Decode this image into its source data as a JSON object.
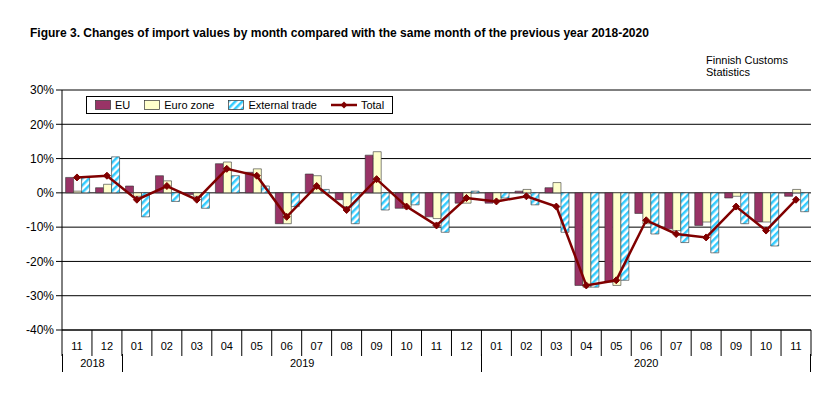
{
  "chart_data": {
    "type": "bar",
    "title": "Figure 3. Changes of import values by month compared with the same month of the previous year 2018-2020",
    "source": "Finnish Customs Statistics",
    "categories": [
      "11",
      "12",
      "01",
      "02",
      "03",
      "04",
      "05",
      "06",
      "07",
      "08",
      "09",
      "10",
      "11",
      "12",
      "01",
      "02",
      "03",
      "04",
      "05",
      "06",
      "07",
      "08",
      "09",
      "10",
      "11"
    ],
    "year_groups": [
      {
        "label": "2018",
        "from": 0,
        "to": 1
      },
      {
        "label": "2019",
        "from": 2,
        "to": 13
      },
      {
        "label": "2020",
        "from": 14,
        "to": 24
      }
    ],
    "series": [
      {
        "name": "EU",
        "type": "bar",
        "color": "#993366",
        "values": [
          4.5,
          1.5,
          2,
          5,
          -0.5,
          8.5,
          6,
          -9,
          5.5,
          -2,
          11,
          -4.5,
          -7,
          -3,
          -3,
          0.5,
          1.5,
          -27,
          -26,
          -6,
          -10.5,
          -9.5,
          -1.5,
          -8.5,
          -1
        ]
      },
      {
        "name": "Euro zone",
        "type": "bar",
        "color": "#FFFFCC",
        "values": [
          0.5,
          2.5,
          -1,
          3.5,
          -1,
          9,
          7,
          -9,
          5,
          -4,
          12,
          -4.5,
          -7.5,
          -3,
          -2.5,
          1,
          3,
          -27.5,
          -27,
          -9,
          -11,
          -8.5,
          -1,
          -8.5,
          1
        ]
      },
      {
        "name": "External trade",
        "type": "bar",
        "color": "#33CCFF",
        "values": [
          4.5,
          10.5,
          -7,
          -2.5,
          -4.5,
          5,
          2,
          -4,
          1,
          -9,
          -5,
          -3.5,
          -11.5,
          0.5,
          -1.5,
          -3.5,
          -11.5,
          -27.5,
          -25.5,
          -12,
          -14.5,
          -17.5,
          -9,
          -15.5,
          -5.5
        ]
      },
      {
        "name": "Total",
        "type": "line",
        "color": "#800000",
        "marker": "diamond",
        "values": [
          4.5,
          5,
          -2,
          2,
          -2,
          7,
          5,
          -7,
          2,
          -5,
          4,
          -4,
          -9.5,
          -1.5,
          -2.5,
          -1,
          -4,
          -27,
          -25.5,
          -8,
          -12,
          -13,
          -4,
          -11,
          -2
        ]
      }
    ],
    "ylim": [
      -40,
      30
    ],
    "yticks": [
      {
        "value": -40,
        "label": "-40%"
      },
      {
        "value": -30,
        "label": "-30%"
      },
      {
        "value": -20,
        "label": "-20%"
      },
      {
        "value": -10,
        "label": "-10%"
      },
      {
        "value": 0,
        "label": "0%"
      },
      {
        "value": 10,
        "label": "10%"
      },
      {
        "value": 20,
        "label": "20%"
      },
      {
        "value": 30,
        "label": "30%"
      }
    ],
    "grid": true
  }
}
